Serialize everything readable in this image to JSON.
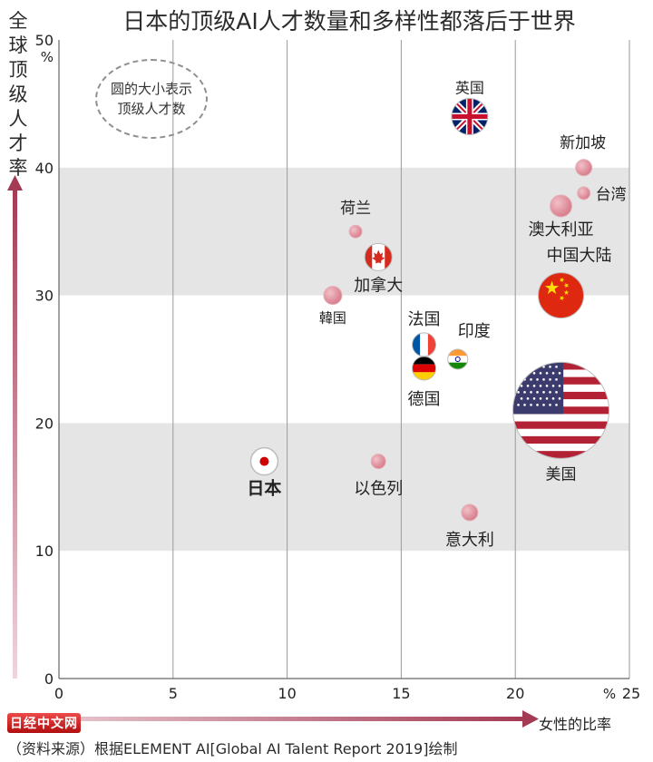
{
  "chart_data": {
    "type": "scatter",
    "title": "日本的顶级AI人才数量和多样性都落后于世界",
    "ylabel": "全球顶级人才率",
    "xlabel": "女性的比率",
    "x_range": [
      0,
      25
    ],
    "y_range": [
      0,
      50
    ],
    "x_unit": "%",
    "y_unit": "%",
    "x_ticks": [
      0,
      5,
      10,
      15,
      20,
      25
    ],
    "y_ticks": [
      0,
      10,
      20,
      30,
      40,
      50
    ],
    "size_note": [
      "圆的大小表示",
      "顶级人才数"
    ],
    "source": "（资料来源）根据ELEMENT AI[Global AI Talent Report 2019]绘制",
    "watermark": "日经中文网",
    "points": [
      {
        "label": "英国",
        "x": 18,
        "y": 44,
        "flag": "uk"
      },
      {
        "label": "新加坡",
        "x": 23,
        "y": 40,
        "flag": ""
      },
      {
        "label": "台湾",
        "x": 23,
        "y": 38,
        "flag": ""
      },
      {
        "label": "澳大利亚",
        "x": 22,
        "y": 37,
        "flag": ""
      },
      {
        "label": "中国大陆",
        "x": 22,
        "y": 30,
        "flag": "china"
      },
      {
        "label": "荷兰",
        "x": 13,
        "y": 35,
        "flag": ""
      },
      {
        "label": "加拿大",
        "x": 14,
        "y": 33,
        "flag": "canada"
      },
      {
        "label": "韓国",
        "x": 12,
        "y": 30,
        "flag": ""
      },
      {
        "label": "法国",
        "x": 16,
        "y": 26,
        "flag": "france"
      },
      {
        "label": "德国",
        "x": 16,
        "y": 25,
        "flag": "germany"
      },
      {
        "label": "印度",
        "x": 17,
        "y": 25,
        "flag": "india"
      },
      {
        "label": "美国",
        "x": 22,
        "y": 21,
        "flag": "usa"
      },
      {
        "label": "日本",
        "x": 9,
        "y": 17,
        "flag": "japan"
      },
      {
        "label": "以色列",
        "x": 14,
        "y": 17,
        "flag": ""
      },
      {
        "label": "意大利",
        "x": 18,
        "y": 13,
        "flag": ""
      }
    ]
  }
}
